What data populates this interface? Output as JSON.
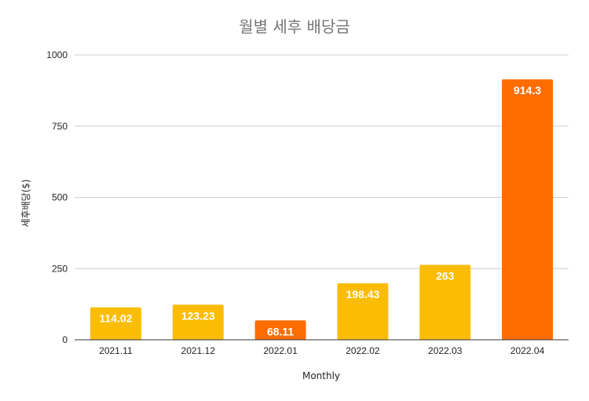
{
  "chart_data": {
    "type": "bar",
    "title": "월별 세후 배당금",
    "xlabel": "Monthly",
    "ylabel": "세후배당($)",
    "categories": [
      "2021.11",
      "2021.12",
      "2022.01",
      "2022.02",
      "2022.03",
      "2022.04"
    ],
    "values": [
      114.02,
      123.23,
      68.11,
      198.43,
      263,
      914.3
    ],
    "data_labels": [
      "114.02",
      "123.23",
      "68.11",
      "198.43",
      "263",
      "914.3"
    ],
    "bar_colors": [
      "#FBBC04",
      "#FBBC04",
      "#FF6D01",
      "#FBBC04",
      "#FBBC04",
      "#FF6D01"
    ],
    "ylim": [
      0,
      1000
    ],
    "yticks": [
      0,
      250,
      500,
      750,
      1000
    ],
    "grid": true,
    "legend": "none"
  }
}
